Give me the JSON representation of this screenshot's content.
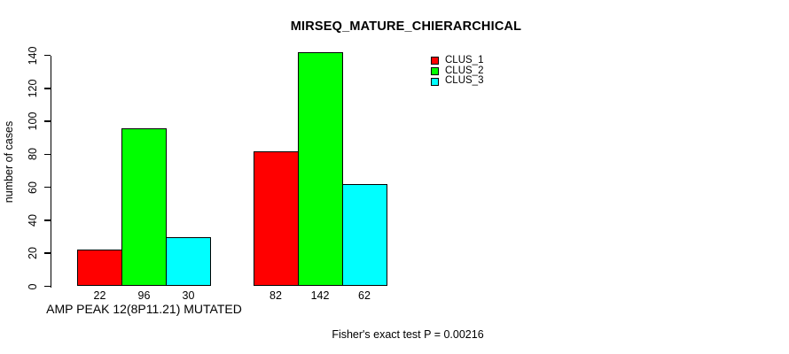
{
  "chart_data": {
    "type": "bar",
    "title": "MIRSEQ_MATURE_CHIERARCHICAL",
    "ylabel": "number of cases",
    "xlabel": "",
    "categories": [
      "AMP PEAK 12(8P11.21) MUTATED",
      ""
    ],
    "series": [
      {
        "name": "CLUS_1",
        "color": "#ff0000",
        "values": [
          22,
          82
        ]
      },
      {
        "name": "CLUS_2",
        "color": "#00ff00",
        "values": [
          96,
          142
        ]
      },
      {
        "name": "CLUS_3",
        "color": "#00ffff",
        "values": [
          30,
          62
        ]
      }
    ],
    "bar_value_labels": [
      [
        22,
        96,
        30
      ],
      [
        82,
        142,
        62
      ]
    ],
    "ylim": [
      0,
      140
    ],
    "yticks": [
      0,
      20,
      40,
      60,
      80,
      100,
      120,
      140
    ],
    "legend_position": "top-right",
    "grid": false,
    "footnote": "Fisher's exact test P = 0.00216",
    "colors": {
      "axis": "#000000",
      "text": "#000000",
      "background": "#ffffff"
    }
  }
}
